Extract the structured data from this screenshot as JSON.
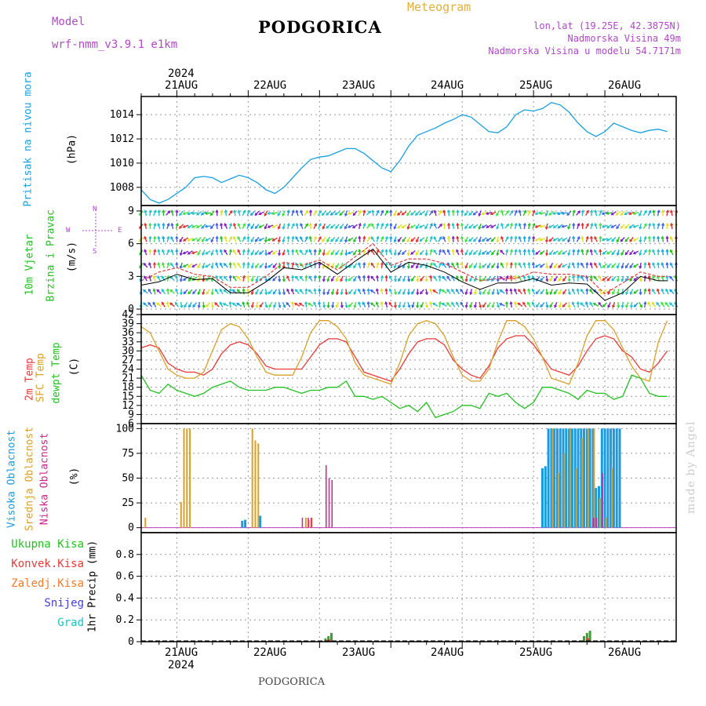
{
  "header": {
    "model_label": "Model",
    "model_name": "wrf-nmm_v3.9.1 e1km",
    "title": "PODGORICA",
    "meteogram": "Meteogram",
    "lonlat": "lon,lat (19.25E, 42.3875N)",
    "elevation": "Nadmorska Visina 49m",
    "model_elevation": "Nadmorska Visina u modelu 54.7171m",
    "footer": "PODGORICA",
    "watermark": "made by Angel"
  },
  "colors": {
    "pressure": "#1aa0e0",
    "temp2m": "#e83a3a",
    "sfc": "#d9a02a",
    "dewpt": "#22c022",
    "high_cloud": "#1a9be0",
    "mid_cloud": "#d9a02a",
    "low_cloud": "#d0208a",
    "magenta_text": "#b048c8",
    "gold_text": "#e0b040"
  },
  "x_axis": {
    "year": "2024",
    "days": [
      "21AUG",
      "22AUG",
      "23AUG",
      "24AUG",
      "25AUG",
      "26AUG"
    ]
  },
  "panels": {
    "pressure": {
      "label": "Pritisak na nivou mora",
      "unit": "(hPa)"
    },
    "wind": {
      "label1": "10m Vjetar",
      "label2": "Brzina i Pravac",
      "unit": "(m/s)",
      "compass": {
        "n": "N",
        "s": "S",
        "w": "W",
        "e": "E"
      }
    },
    "temp": {
      "label1": "2m Temp",
      "label2": "SFC Temp",
      "label3": "dewpt Temp",
      "unit": "(C)"
    },
    "cloud": {
      "label1": "Visoka Oblacnost",
      "label2": "Srednja Oblacnost",
      "label3": "Niska Oblacnost",
      "unit": "(%)"
    },
    "precip": {
      "ylabel": "1hr Precip (mm)",
      "legend": [
        "Ukupna Kisa",
        "Konvek.Kisa",
        "Zaledj.Kisa",
        "Snijeg",
        "Grad"
      ]
    }
  },
  "chart_data": [
    {
      "type": "line",
      "name": "pressure",
      "x_unit": "hours from 2024-08-20 12:00",
      "ylim": [
        1006.5,
        1015.5
      ],
      "yticks": [
        1008,
        1010,
        1012,
        1014
      ],
      "grid": true,
      "series": [
        {
          "name": "Pritisak na nivou mora",
          "x": [
            0,
            3,
            6,
            9,
            12,
            15,
            18,
            21,
            24,
            27,
            30,
            33,
            36,
            39,
            42,
            45,
            48,
            51,
            54,
            57,
            60,
            63,
            66,
            69,
            72,
            75,
            78,
            81,
            84,
            87,
            90,
            93,
            96,
            99,
            102,
            105,
            108,
            111,
            114,
            117,
            120,
            123,
            126,
            129,
            132,
            135,
            138,
            141,
            144,
            147,
            150,
            153,
            156,
            159,
            162,
            165,
            168,
            171,
            174,
            177
          ],
          "y": [
            1007.8,
            1007.0,
            1006.7,
            1007.0,
            1007.5,
            1008.0,
            1008.8,
            1008.9,
            1008.8,
            1008.4,
            1008.7,
            1009.0,
            1008.8,
            1008.4,
            1007.8,
            1007.5,
            1008.0,
            1008.8,
            1009.6,
            1010.3,
            1010.5,
            1010.6,
            1010.9,
            1011.2,
            1011.2,
            1010.8,
            1010.2,
            1009.6,
            1009.3,
            1010.2,
            1011.4,
            1012.3,
            1012.6,
            1012.9,
            1013.3,
            1013.6,
            1014.0,
            1013.8,
            1013.2,
            1012.6,
            1012.5,
            1013.0,
            1014.0,
            1014.4,
            1014.3,
            1014.5,
            1015.0,
            1014.8,
            1014.2,
            1013.3,
            1012.6,
            1012.2,
            1012.6,
            1013.3,
            1013.0,
            1012.7,
            1012.5,
            1012.7,
            1012.8,
            1012.6
          ]
        }
      ]
    },
    {
      "type": "line",
      "name": "wind",
      "x_unit": "hours from 2024-08-20 12:00",
      "ylim": [
        -0.5,
        9.5
      ],
      "yticks": [
        0,
        3,
        6,
        9
      ],
      "grid": true,
      "series": [
        {
          "name": "wind speed",
          "x": [
            0,
            6,
            12,
            18,
            24,
            30,
            36,
            42,
            48,
            54,
            60,
            66,
            72,
            78,
            84,
            90,
            96,
            102,
            108,
            114,
            120,
            126,
            132,
            138,
            144,
            150,
            156,
            162,
            168,
            174,
            177
          ],
          "y": [
            2.2,
            2.5,
            3.2,
            2.7,
            2.8,
            1.5,
            1.5,
            2.5,
            3.8,
            3.6,
            4.3,
            3.2,
            4.4,
            5.5,
            3.4,
            4.3,
            4.0,
            3.4,
            2.5,
            1.8,
            2.4,
            2.4,
            2.8,
            2.2,
            2.4,
            2.3,
            0.8,
            1.5,
            3.0,
            2.6,
            2.6
          ]
        },
        {
          "name": "gust",
          "x": [
            0,
            6,
            12,
            18,
            24,
            30,
            36,
            42,
            48,
            54,
            60,
            66,
            72,
            78,
            84,
            90,
            96,
            102,
            108,
            114,
            120,
            126,
            132,
            138,
            144,
            150,
            156,
            162,
            168,
            174,
            177
          ],
          "y": [
            2.6,
            3.4,
            3.8,
            3.2,
            3.0,
            2.0,
            2.0,
            3.0,
            4.3,
            4.0,
            4.5,
            3.6,
            4.8,
            6.0,
            4.0,
            4.6,
            4.6,
            4.2,
            3.4,
            2.6,
            2.8,
            2.8,
            3.4,
            3.2,
            3.2,
            3.0,
            1.4,
            2.4,
            3.4,
            3.0,
            3.0
          ]
        }
      ]
    },
    {
      "type": "line",
      "name": "temperature",
      "x_unit": "hours from 2024-08-20 12:00",
      "ylim": [
        6,
        42
      ],
      "yticks": [
        6,
        9,
        12,
        15,
        18,
        21,
        24,
        27,
        30,
        33,
        36,
        39,
        42
      ],
      "grid": true,
      "series": [
        {
          "name": "2m Temp",
          "x": [
            0,
            3,
            6,
            9,
            12,
            15,
            18,
            21,
            24,
            27,
            30,
            33,
            36,
            39,
            42,
            45,
            48,
            51,
            54,
            57,
            60,
            63,
            66,
            69,
            72,
            75,
            78,
            81,
            84,
            87,
            90,
            93,
            96,
            99,
            102,
            105,
            108,
            111,
            114,
            117,
            120,
            123,
            126,
            129,
            132,
            135,
            138,
            141,
            144,
            147,
            150,
            153,
            156,
            159,
            162,
            165,
            168,
            171,
            174,
            177
          ],
          "y": [
            31,
            32,
            31,
            26,
            24,
            23,
            23,
            22,
            24,
            29,
            32,
            33,
            32,
            29,
            25,
            24,
            24,
            24,
            24,
            28,
            32,
            34,
            34,
            33,
            28,
            23,
            22,
            21,
            20,
            24,
            29,
            33,
            34,
            34,
            32,
            27,
            24,
            22,
            21,
            25,
            31,
            34,
            35,
            35,
            32,
            28,
            24,
            23,
            22,
            25,
            30,
            34,
            35,
            34,
            30,
            28,
            24,
            23,
            26,
            30
          ]
        },
        {
          "name": "SFC Temp",
          "x": [
            0,
            3,
            6,
            9,
            12,
            15,
            18,
            21,
            24,
            27,
            30,
            33,
            36,
            39,
            42,
            45,
            48,
            51,
            54,
            57,
            60,
            63,
            66,
            69,
            72,
            75,
            78,
            81,
            84,
            87,
            90,
            93,
            96,
            99,
            102,
            105,
            108,
            111,
            114,
            117,
            120,
            123,
            126,
            129,
            132,
            135,
            138,
            141,
            144,
            147,
            150,
            153,
            156,
            159,
            162,
            165,
            168,
            171,
            174,
            177
          ],
          "y": [
            38,
            36,
            30,
            24,
            22,
            21,
            21,
            23,
            30,
            37,
            39,
            38,
            34,
            28,
            23,
            22,
            22,
            22,
            28,
            36,
            40,
            40,
            38,
            34,
            26,
            22,
            21,
            20,
            19,
            26,
            35,
            39,
            40,
            39,
            35,
            28,
            22,
            20,
            20,
            24,
            33,
            40,
            40,
            38,
            34,
            28,
            21,
            20,
            19,
            26,
            35,
            40,
            40,
            37,
            31,
            25,
            21,
            20,
            33,
            40
          ]
        },
        {
          "name": "dewpt Temp",
          "x": [
            0,
            3,
            6,
            9,
            12,
            15,
            18,
            21,
            24,
            27,
            30,
            33,
            36,
            39,
            42,
            45,
            48,
            51,
            54,
            57,
            60,
            63,
            66,
            69,
            72,
            75,
            78,
            81,
            84,
            87,
            90,
            93,
            96,
            99,
            102,
            105,
            108,
            111,
            114,
            117,
            120,
            123,
            126,
            129,
            132,
            135,
            138,
            141,
            144,
            147,
            150,
            153,
            156,
            159,
            162,
            165,
            168,
            171,
            174,
            177
          ],
          "y": [
            22,
            17,
            16,
            19,
            17,
            16,
            15,
            16,
            18,
            19,
            20,
            18,
            17,
            17,
            17,
            18,
            18,
            17,
            16,
            17,
            17,
            18,
            18,
            20,
            15,
            15,
            14,
            15,
            13,
            11,
            12,
            10,
            13,
            8,
            9,
            10,
            12,
            12,
            11,
            16,
            15,
            16,
            13,
            11,
            13,
            18,
            18,
            17,
            16,
            14,
            17,
            16,
            16,
            14,
            15,
            22,
            21,
            16,
            15,
            15
          ]
        }
      ]
    },
    {
      "type": "bar",
      "name": "cloud",
      "x_unit": "hours from 2024-08-20 12:00",
      "ylim": [
        -5,
        105
      ],
      "yticks": [
        0,
        25,
        50,
        75,
        100
      ],
      "grid": true,
      "series": [
        {
          "name": "Visoka Oblacnost",
          "x": [
            34,
            35,
            40,
            135,
            136,
            137,
            138,
            139,
            140,
            141,
            142,
            143,
            144,
            145,
            146,
            147,
            148,
            149,
            150,
            151,
            152,
            153,
            154,
            155,
            156,
            157,
            158,
            159,
            160,
            161
          ],
          "y": [
            7,
            8,
            12,
            60,
            62,
            100,
            100,
            100,
            100,
            100,
            100,
            100,
            100,
            100,
            100,
            100,
            100,
            100,
            100,
            100,
            100,
            40,
            42,
            100,
            100,
            100,
            100,
            100,
            100,
            100
          ]
        },
        {
          "name": "Srednja Oblacnost",
          "x": [
            1,
            13,
            14,
            15,
            16,
            37,
            38,
            39,
            55,
            56,
            57,
            138,
            140,
            142,
            144,
            146,
            148,
            150,
            152,
            154,
            156,
            158
          ],
          "y": [
            10,
            26,
            100,
            100,
            100,
            100,
            88,
            85,
            10,
            8,
            10,
            100,
            55,
            75,
            100,
            60,
            90,
            100,
            100,
            30,
            10,
            60
          ]
        },
        {
          "name": "Niska Oblacnost",
          "x": [
            54,
            56,
            57,
            62,
            63,
            64,
            152,
            153,
            155
          ],
          "y": [
            10,
            10,
            10,
            63,
            50,
            48,
            10,
            10,
            55
          ]
        }
      ]
    },
    {
      "type": "bar",
      "name": "precip",
      "x_unit": "hours from 2024-08-20 12:00",
      "ylim": [
        0,
        1.0
      ],
      "yticks": [
        0,
        0.2,
        0.4,
        0.6,
        0.8
      ],
      "grid": true,
      "series": [
        {
          "name": "Ukupna Kisa",
          "x": [
            62,
            63,
            64,
            149,
            150,
            151
          ],
          "y": [
            0.03,
            0.05,
            0.08,
            0.05,
            0.08,
            0.1
          ]
        },
        {
          "name": "Konvek.Kisa",
          "x": [
            63,
            150
          ],
          "y": [
            0.02,
            0.03
          ]
        }
      ]
    }
  ]
}
